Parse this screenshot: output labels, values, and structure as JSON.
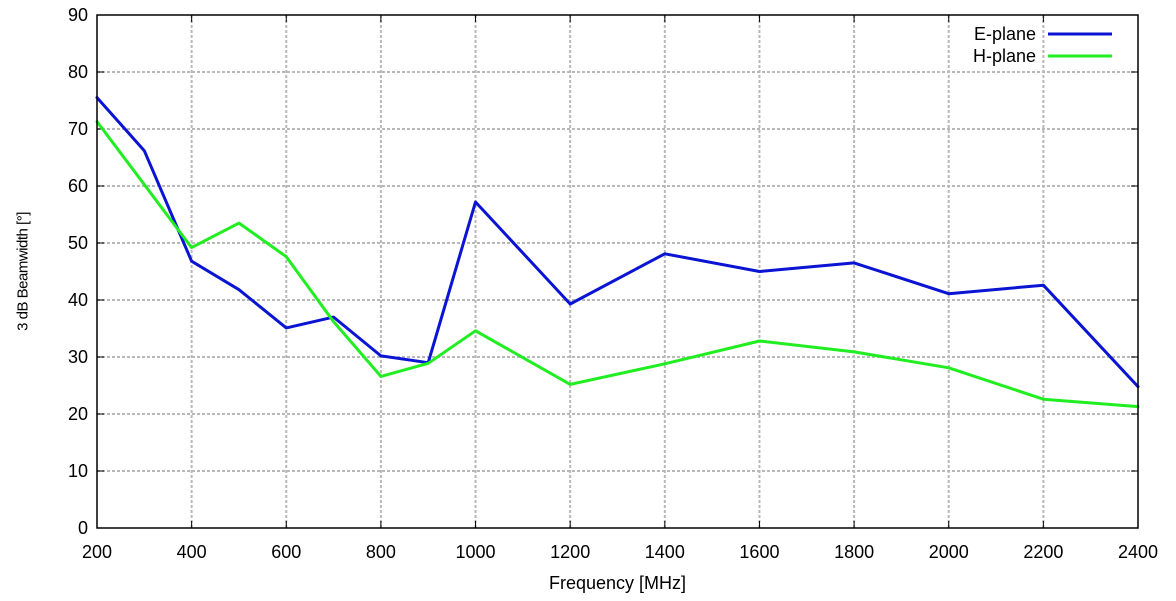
{
  "chart_data": {
    "type": "line",
    "xlabel": "Frequency [MHz]",
    "ylabel": "3 dB Beamwidth [°]",
    "xlim": [
      200,
      2400
    ],
    "ylim": [
      0,
      90
    ],
    "xticks": [
      200,
      400,
      600,
      800,
      1000,
      1200,
      1400,
      1600,
      1800,
      2000,
      2200,
      2400
    ],
    "yticks": [
      0,
      10,
      20,
      30,
      40,
      50,
      60,
      70,
      80,
      90
    ],
    "grid": true,
    "legend_position": "top-right",
    "series": [
      {
        "name": "E-plane",
        "color": "#0a14d2",
        "x": [
          200,
          300,
          400,
          500,
          600,
          700,
          800,
          900,
          1000,
          1200,
          1400,
          1600,
          1800,
          2000,
          2200,
          2400
        ],
        "y": [
          75.5,
          66.2,
          46.8,
          41.8,
          35.1,
          37.0,
          30.2,
          29.0,
          57.2,
          39.3,
          48.1,
          45.0,
          46.5,
          41.1,
          42.6,
          24.8
        ]
      },
      {
        "name": "H-plane",
        "color": "#20ee20",
        "x": [
          200,
          400,
          500,
          600,
          700,
          800,
          900,
          1000,
          1200,
          1400,
          1600,
          1800,
          2000,
          2200,
          2400
        ],
        "y": [
          71.3,
          49.2,
          53.5,
          47.6,
          36.2,
          26.6,
          28.9,
          34.6,
          25.2,
          28.8,
          32.8,
          30.9,
          28.1,
          22.6,
          21.3
        ]
      }
    ]
  }
}
